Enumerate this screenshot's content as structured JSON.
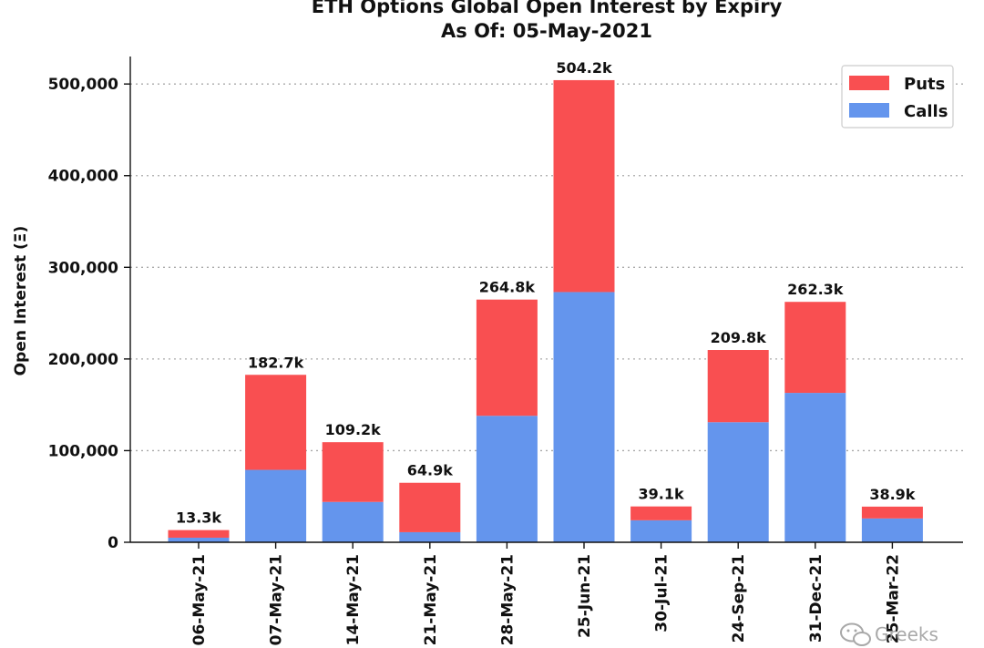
{
  "chart_data": {
    "type": "bar",
    "stacked": true,
    "title": "ETH Options Global Open Interest by Expiry",
    "subtitle": "As Of: 05-May-2021",
    "xlabel": "",
    "ylabel": "Open Interest (Ξ)",
    "ylim": [
      0,
      530000
    ],
    "yticks": [
      0,
      100000,
      200000,
      300000,
      400000,
      500000
    ],
    "ytick_labels": [
      "0",
      "100,000",
      "200,000",
      "300,000",
      "400,000",
      "500,000"
    ],
    "grid": "y-dotted",
    "legend_position": "top-right",
    "categories": [
      "06-May-21",
      "07-May-21",
      "14-May-21",
      "21-May-21",
      "28-May-21",
      "25-Jun-21",
      "30-Jul-21",
      "24-Sep-21",
      "31-Dec-21",
      "25-Mar-22"
    ],
    "series": [
      {
        "name": "Calls",
        "color": "#6495ed",
        "values": [
          5000,
          79000,
          44000,
          11000,
          138000,
          273000,
          24000,
          131000,
          163000,
          26000
        ]
      },
      {
        "name": "Puts",
        "color": "#f94f51",
        "values": [
          8300,
          103700,
          65200,
          53900,
          126800,
          231200,
          15100,
          78800,
          99300,
          12900
        ]
      }
    ],
    "total_labels": [
      "13.3k",
      "182.7k",
      "109.2k",
      "64.9k",
      "264.8k",
      "504.2k",
      "39.1k",
      "209.8k",
      "262.3k",
      "38.9k"
    ],
    "legend_order": [
      "Puts",
      "Calls"
    ]
  },
  "watermark": {
    "icon": "wechat-icon",
    "text": "Greeks"
  }
}
